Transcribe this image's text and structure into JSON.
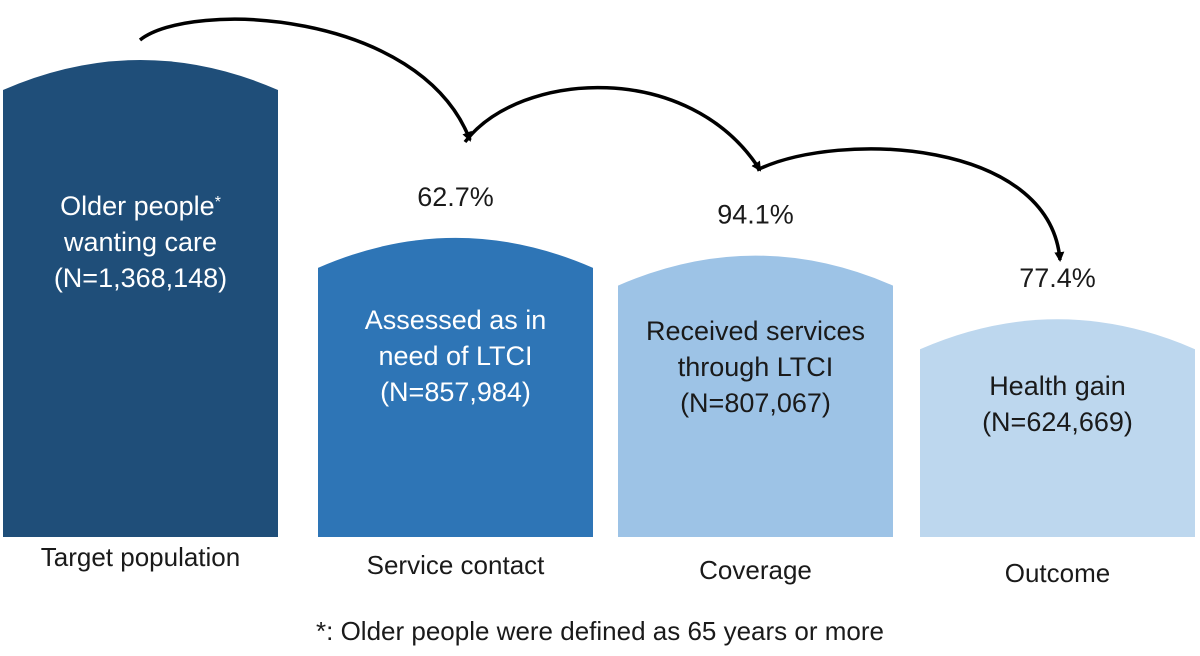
{
  "chart_data": {
    "type": "bar",
    "title": "",
    "xlabel": "",
    "ylabel": "",
    "ylim": [
      0,
      1368148
    ],
    "categories": [
      "Target population",
      "Service contact",
      "Coverage",
      "Outcome"
    ],
    "bars": [
      {
        "category": "Target population",
        "label_lines": [
          "Older people",
          "wanting care",
          "(N=1,368,148)"
        ],
        "superscript": "*",
        "value": 1368148,
        "color": "#1f4e79",
        "text_color": "#ffffff"
      },
      {
        "category": "Service contact",
        "label_lines": [
          "Assessed as in",
          "need of LTCI",
          "(N=857,984)"
        ],
        "value": 857984,
        "color": "#2e75b6",
        "text_color": "#ffffff"
      },
      {
        "category": "Coverage",
        "label_lines": [
          "Received services",
          "through LTCI",
          "(N=807,067)"
        ],
        "value": 807067,
        "color": "#9dc3e6",
        "text_color": "#1a1a1a"
      },
      {
        "category": "Outcome",
        "label_lines": [
          "Health gain",
          "(N=624,669)"
        ],
        "value": 624669,
        "color": "#bdd7ee",
        "text_color": "#1a1a1a"
      }
    ],
    "transitions": [
      {
        "from": "Target population",
        "to": "Service contact",
        "rate": "62.7%"
      },
      {
        "from": "Service contact",
        "to": "Coverage",
        "rate": "94.1%"
      },
      {
        "from": "Coverage",
        "to": "Outcome",
        "rate": "77.4%"
      }
    ],
    "footnote": "*: Older people were defined as 65 years or more",
    "grid": false,
    "legend": "none"
  }
}
